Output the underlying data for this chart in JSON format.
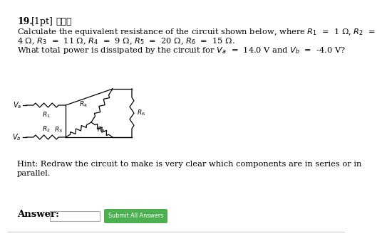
{
  "title_line": "19. [1pt]   ★★★",
  "line1": "Calculate the equivalent resistance of the circuit shown below, where $R_1$  =  1 Ω, $R_2$  =",
  "line2": "4 Ω, $R_3$  =  11 Ω, $R_4$  =  9 Ω, $R_5$  =  20 Ω, $R_6$  =  15 Ω.",
  "line3": "What total power is dissipated by the circuit for $V_a$  =  14.0 V and $V_b$  =  -4.0 V?",
  "hint_line1": "Hint: Redraw the circuit to make is very clear which components are in series or in",
  "hint_line2": "parallel.",
  "answer_label": "Answer:",
  "button_text": "Submit All Answers",
  "button_color": "#4caf50",
  "bg_color": "#ffffff",
  "text_color": "#000000",
  "circuit": {
    "Va_label": "$V_a$",
    "Vb_label": "$V_b$",
    "R1_label": "$R_1$",
    "R2_label": "$R_2$",
    "R3_label": "$R_3$",
    "R4_label": "$R_4$",
    "R5_label": "$R_5$",
    "R6_label": "$R_6$"
  }
}
